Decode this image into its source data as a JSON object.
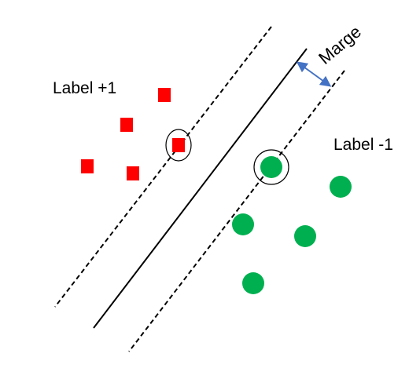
{
  "labels": {
    "positive": "Label +1",
    "negative": "Label -1",
    "margin": "Marge"
  },
  "colors": {
    "positive_class": "#ff0000",
    "negative_class": "#00b050",
    "margin_arrow": "#4472c4",
    "lines": "#000000",
    "background": "#ffffff"
  },
  "legend": {
    "positive_marker": "square",
    "negative_marker": "circle",
    "support_vector_marker": "ring"
  }
}
